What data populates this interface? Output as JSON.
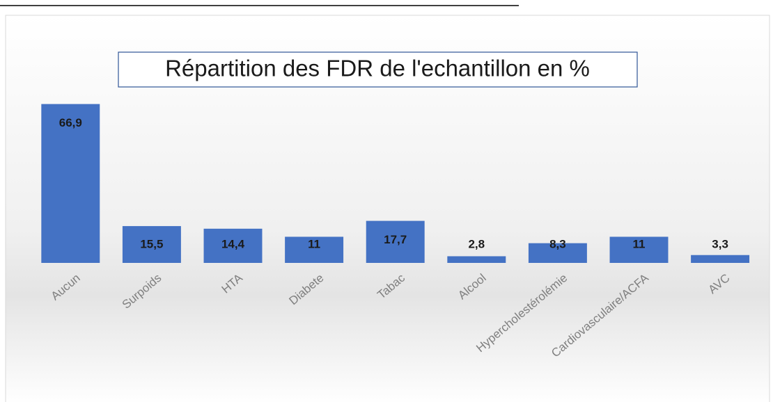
{
  "chart_data": {
    "type": "bar",
    "title": "Répartition des FDR de l'echantillon en %",
    "categories": [
      "Aucun",
      "Surpoids",
      "HTA",
      "Diabete",
      "Tabac",
      "Alcool",
      "Hypercholestérolémie",
      "Cardiovasculaire/ACFA",
      "AVC"
    ],
    "values": [
      66.9,
      15.5,
      14.4,
      11,
      17.7,
      2.8,
      8.3,
      11,
      3.3
    ],
    "value_labels": [
      "66,9",
      "15,5",
      "14,4",
      "11",
      "17,7",
      "2,8",
      "8,3",
      "11",
      "3,3"
    ],
    "color": "#4472c4",
    "ylim": [
      0,
      70
    ]
  }
}
